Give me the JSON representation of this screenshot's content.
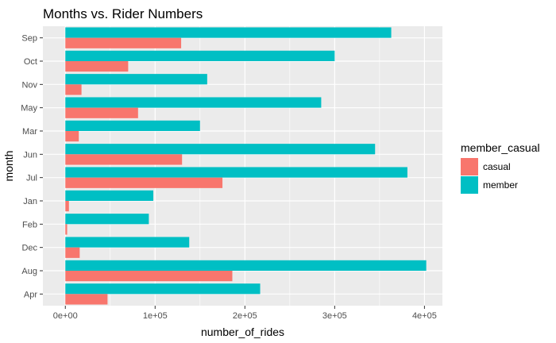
{
  "chart_data": {
    "type": "bar",
    "orientation": "horizontal",
    "title": "Months vs. Rider Numbers",
    "xlabel": "number_of_rides",
    "ylabel": "month",
    "categories": [
      "Sep",
      "Oct",
      "Nov",
      "May",
      "Mar",
      "Jun",
      "Jul",
      "Jan",
      "Feb",
      "Dec",
      "Aug",
      "Apr"
    ],
    "series": [
      {
        "name": "member",
        "color": "#00BFC4",
        "values": [
          363000,
          300000,
          158000,
          285000,
          150000,
          345000,
          381000,
          98000,
          93000,
          138000,
          402000,
          217000
        ]
      },
      {
        "name": "casual",
        "color": "#F8766D",
        "values": [
          129000,
          70000,
          18000,
          81000,
          15000,
          130000,
          175000,
          4000,
          2000,
          16000,
          186000,
          47000
        ]
      }
    ],
    "xlim": [
      -25000,
      420000
    ],
    "xticks": [
      0,
      100000,
      200000,
      300000,
      400000
    ],
    "xtick_labels": [
      "0e+00",
      "1e+05",
      "2e+05",
      "3e+05",
      "4e+05"
    ],
    "grid": true,
    "panel_background": "#EBEBEB",
    "legend": {
      "title": "member_casual",
      "position": "right",
      "entries": [
        {
          "label": "casual",
          "color": "#F8766D"
        },
        {
          "label": "member",
          "color": "#00BFC4"
        }
      ]
    }
  }
}
